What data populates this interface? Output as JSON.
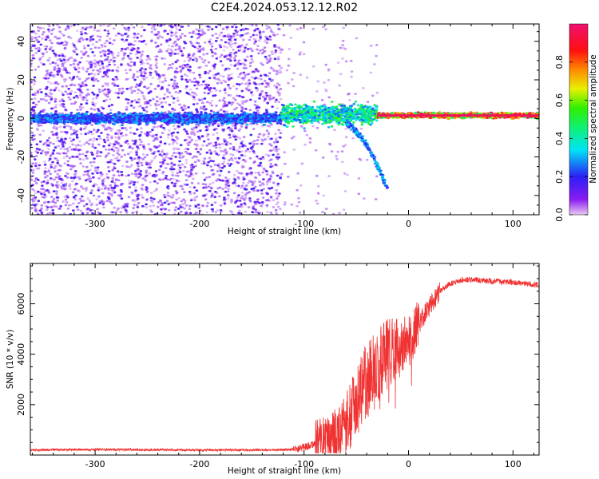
{
  "title": "C2E4.2024.053.12.12.R02",
  "chart_data": [
    {
      "type": "heatmap",
      "xlabel": "Height of straight line (km)",
      "ylabel": "Frequency (Hz)",
      "xlim": [
        -362,
        125
      ],
      "ylim": [
        -50,
        49
      ],
      "xticks": [
        -300,
        -200,
        -100,
        0,
        100
      ],
      "xtick_labels": [
        "-300",
        "-200",
        "-100",
        "0",
        "100"
      ],
      "yticks": [
        -40,
        -20,
        0,
        20,
        40
      ],
      "ytick_labels": [
        "-40",
        "-20",
        "0",
        "20",
        "40"
      ],
      "colorbar": {
        "label": "Normalized spectral amplitude",
        "range": [
          0,
          1
        ],
        "ticks": [
          0.0,
          0.2,
          0.4,
          0.6,
          0.8
        ],
        "tick_labels": [
          "0.0",
          "0.2",
          "0.4",
          "0.6",
          "0.8"
        ],
        "colormap": "hsv-like: magenta-violet-blue-cyan-green-yellow-orange-red-pink"
      },
      "regions": [
        {
          "x": [
            -362,
            -122
          ],
          "freq_center": 0,
          "band_halfwidth": 3,
          "band_amplitude": 0.3,
          "noise": "broadband scattered",
          "noise_amplitude": 0.1
        },
        {
          "x": [
            -122,
            -30
          ],
          "freq_center": 2,
          "band_halfwidth": 6,
          "band_amplitude": 0.5,
          "noise": "sparse"
        },
        {
          "x": [
            -60,
            -20
          ],
          "trace": "descending tail",
          "freq_from": -3,
          "freq_to": -37,
          "amplitude": 0.3
        },
        {
          "x": [
            -30,
            125
          ],
          "freq_center": 1.5,
          "band_halfwidth": 1.5,
          "band_amplitude": 0.95,
          "noise": "none"
        }
      ]
    },
    {
      "type": "line",
      "xlabel": "Height of straight line (km)",
      "ylabel": "SNR (10 * v/v)",
      "xlim": [
        -362,
        125
      ],
      "ylim": [
        0,
        7600
      ],
      "xticks": [
        -300,
        -200,
        -100,
        0,
        100
      ],
      "xtick_labels": [
        "-300",
        "-200",
        "-100",
        "0",
        "100"
      ],
      "yticks": [
        2000,
        4000,
        6000
      ],
      "ytick_labels": [
        "2000",
        "4000",
        "6000"
      ],
      "color": "#f03232",
      "series": [
        {
          "x": [
            -362,
            -300,
            -200,
            -130,
            -110,
            -100,
            -90,
            -80,
            -70,
            -60,
            -50,
            -40,
            -30,
            -20,
            -10,
            0,
            10,
            20,
            30,
            40,
            50,
            60,
            80,
            100,
            125
          ],
          "values": [
            200,
            220,
            200,
            200,
            220,
            300,
            420,
            550,
            750,
            1200,
            2100,
            3000,
            3500,
            4000,
            4200,
            4500,
            5200,
            5900,
            6500,
            6800,
            6950,
            6950,
            6900,
            6850,
            6750
          ]
        }
      ]
    }
  ]
}
